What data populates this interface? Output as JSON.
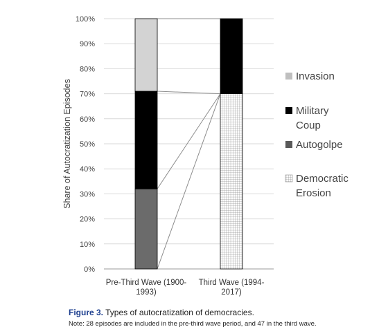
{
  "chart_data": {
    "type": "bar",
    "stacked": true,
    "percent_axis": true,
    "categories": [
      "Pre-Third Wave (1900-1993)",
      "Third Wave (1994-2017)"
    ],
    "category_label_lines": [
      [
        "Pre-Third Wave (1900-",
        "1993)"
      ],
      [
        "Third Wave (1994-",
        "2017)"
      ]
    ],
    "series": [
      {
        "name": "Democratic Erosion",
        "values": [
          0,
          70
        ],
        "pattern": "grid"
      },
      {
        "name": "Autogolpe",
        "values": [
          32,
          0
        ]
      },
      {
        "name": "Military Coup",
        "values": [
          39,
          30
        ]
      },
      {
        "name": "Invasion",
        "values": [
          29,
          0
        ]
      }
    ],
    "ylabel": "Share of Autocratization Episodes",
    "ylim": [
      0,
      100
    ],
    "yticks": [
      "0%",
      "10%",
      "20%",
      "30%",
      "40%",
      "50%",
      "60%",
      "70%",
      "80%",
      "90%",
      "100%"
    ],
    "grid": true,
    "legend": {
      "position": "right",
      "items": [
        {
          "name": "Invasion",
          "lines": [
            "Invasion"
          ],
          "color": "#bfbfbf"
        },
        {
          "name": "Military Coup",
          "lines": [
            "Military",
            "Coup"
          ],
          "color": "#000000"
        },
        {
          "name": "Autogolpe",
          "lines": [
            "Autogolpe"
          ],
          "color": "#595959"
        },
        {
          "name": "Democratic Erosion",
          "lines": [
            "Democratic",
            "Erosion"
          ],
          "color": "pattern"
        }
      ]
    },
    "colors": {
      "Invasion": "#d3d3d3",
      "Military Coup": "#000000",
      "Autogolpe": "#6b6b6b",
      "Democratic Erosion": "#ffffff"
    },
    "connector_lines": true
  },
  "caption": {
    "figure_label": "Figure 3.",
    "text": " Types of autocratization of democracies."
  },
  "note": "Note: 28 episodes are included in the pre-third wave period, and 47 in the third wave."
}
